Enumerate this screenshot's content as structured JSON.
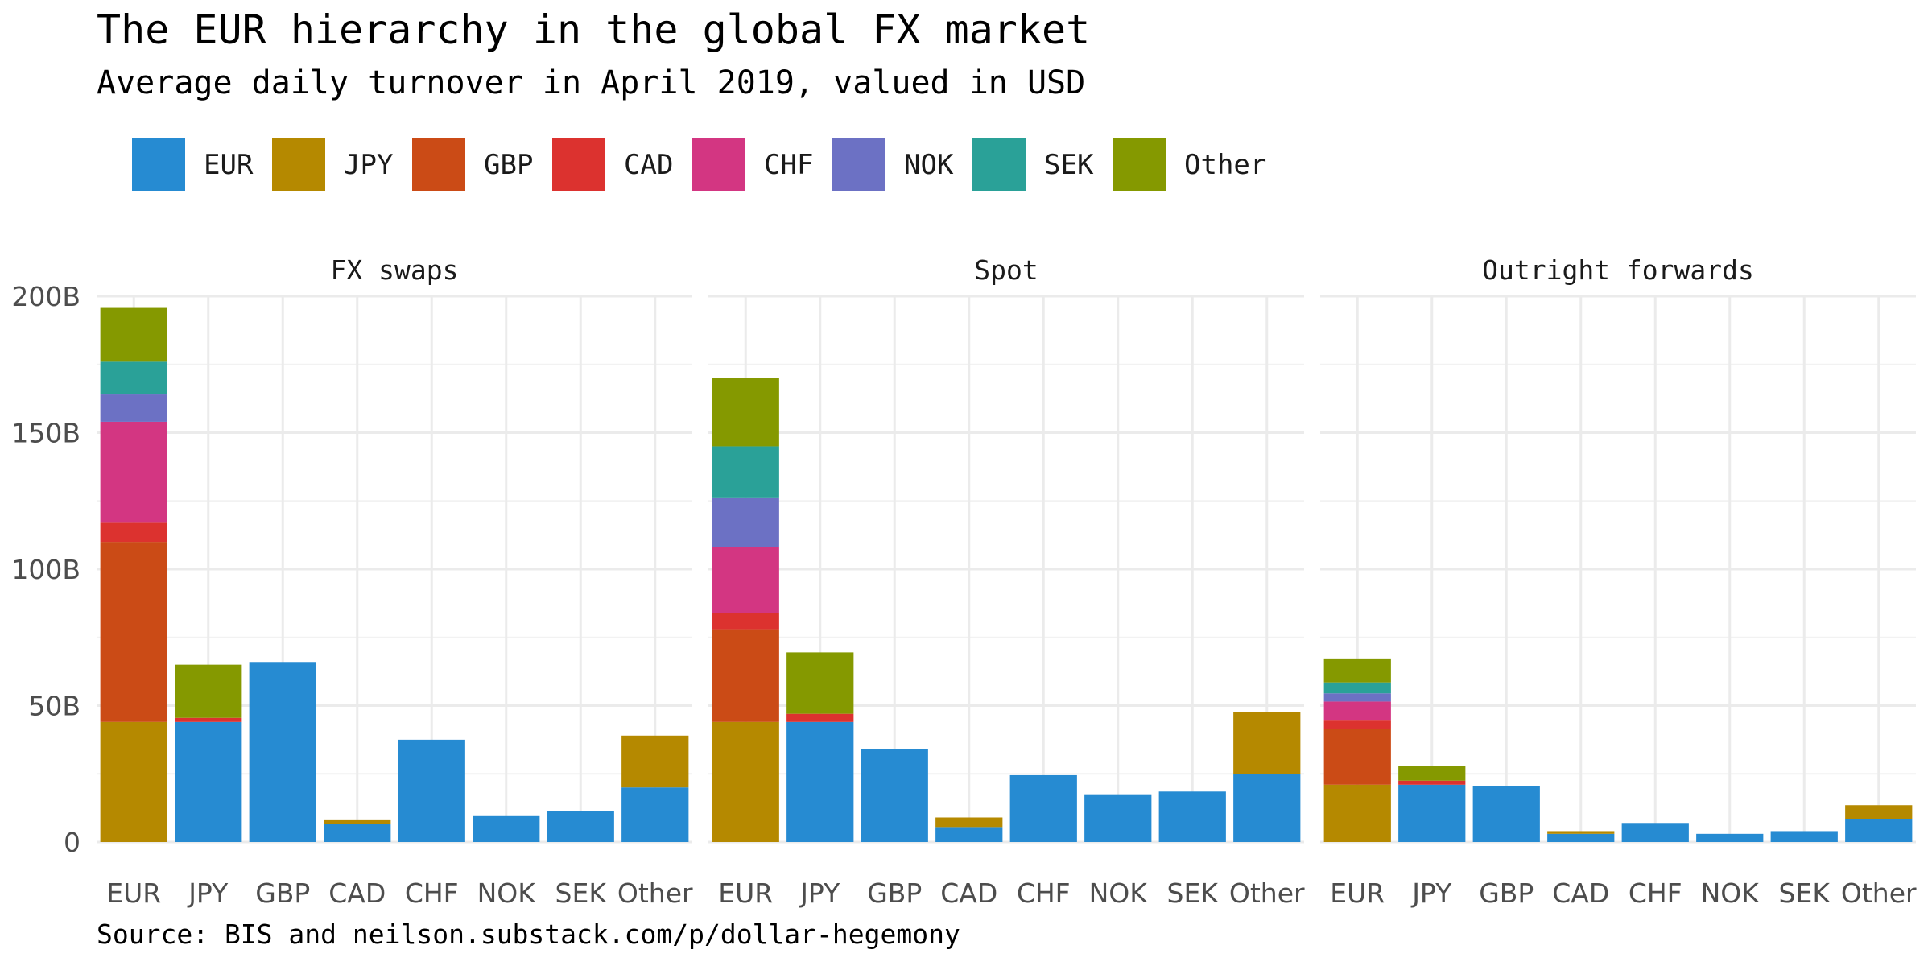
{
  "title": "The EUR hierarchy in the global FX market",
  "subtitle": "Average daily turnover in April 2019, valued in USD",
  "caption": "Source: BIS and neilson.substack.com/p/dollar-hegemony",
  "colors": {
    "EUR": "#268bd2",
    "JPY": "#b58900",
    "GBP": "#cb4b16",
    "CAD": "#dc322f",
    "CHF": "#d33682",
    "NOK": "#6c71c4",
    "SEK": "#2aa198",
    "Other": "#859900"
  },
  "chart_data": {
    "type": "bar",
    "stacked": true,
    "facets": [
      "FX swaps",
      "Spot",
      "Outright forwards"
    ],
    "categories": [
      "EUR",
      "JPY",
      "GBP",
      "CAD",
      "CHF",
      "NOK",
      "SEK",
      "Other"
    ],
    "legend": [
      "EUR",
      "JPY",
      "GBP",
      "CAD",
      "CHF",
      "NOK",
      "SEK",
      "Other"
    ],
    "legend_position": "top",
    "ylim": [
      0,
      200
    ],
    "y_ticks": [
      0,
      50,
      100,
      150,
      200
    ],
    "y_tick_labels": [
      "0",
      "50B",
      "100B",
      "150B",
      "200B"
    ],
    "unit": "billions USD",
    "grid": true,
    "panels": [
      {
        "name": "FX swaps",
        "bars": [
          {
            "category": "EUR",
            "segments": [
              {
                "currency": "JPY",
                "value": 44
              },
              {
                "currency": "GBP",
                "value": 66
              },
              {
                "currency": "CAD",
                "value": 7
              },
              {
                "currency": "CHF",
                "value": 37
              },
              {
                "currency": "NOK",
                "value": 10
              },
              {
                "currency": "SEK",
                "value": 12
              },
              {
                "currency": "Other",
                "value": 20
              }
            ]
          },
          {
            "category": "JPY",
            "segments": [
              {
                "currency": "EUR",
                "value": 44
              },
              {
                "currency": "CAD",
                "value": 1.5
              },
              {
                "currency": "Other",
                "value": 19.5
              }
            ]
          },
          {
            "category": "GBP",
            "segments": [
              {
                "currency": "EUR",
                "value": 66
              }
            ]
          },
          {
            "category": "CAD",
            "segments": [
              {
                "currency": "EUR",
                "value": 6.5
              },
              {
                "currency": "JPY",
                "value": 1.5
              }
            ]
          },
          {
            "category": "CHF",
            "segments": [
              {
                "currency": "EUR",
                "value": 37.5
              }
            ]
          },
          {
            "category": "NOK",
            "segments": [
              {
                "currency": "EUR",
                "value": 9.5
              }
            ]
          },
          {
            "category": "SEK",
            "segments": [
              {
                "currency": "EUR",
                "value": 11.5
              }
            ]
          },
          {
            "category": "Other",
            "segments": [
              {
                "currency": "EUR",
                "value": 20
              },
              {
                "currency": "JPY",
                "value": 19
              }
            ]
          }
        ]
      },
      {
        "name": "Spot",
        "bars": [
          {
            "category": "EUR",
            "segments": [
              {
                "currency": "JPY",
                "value": 44
              },
              {
                "currency": "GBP",
                "value": 34
              },
              {
                "currency": "CAD",
                "value": 6
              },
              {
                "currency": "CHF",
                "value": 24
              },
              {
                "currency": "NOK",
                "value": 18
              },
              {
                "currency": "SEK",
                "value": 19
              },
              {
                "currency": "Other",
                "value": 25
              }
            ]
          },
          {
            "category": "JPY",
            "segments": [
              {
                "currency": "EUR",
                "value": 44
              },
              {
                "currency": "CAD",
                "value": 3
              },
              {
                "currency": "Other",
                "value": 22.5
              }
            ]
          },
          {
            "category": "GBP",
            "segments": [
              {
                "currency": "EUR",
                "value": 34
              }
            ]
          },
          {
            "category": "CAD",
            "segments": [
              {
                "currency": "EUR",
                "value": 5.5
              },
              {
                "currency": "JPY",
                "value": 3.5
              }
            ]
          },
          {
            "category": "CHF",
            "segments": [
              {
                "currency": "EUR",
                "value": 24.5
              }
            ]
          },
          {
            "category": "NOK",
            "segments": [
              {
                "currency": "EUR",
                "value": 17.5
              }
            ]
          },
          {
            "category": "SEK",
            "segments": [
              {
                "currency": "EUR",
                "value": 18.5
              }
            ]
          },
          {
            "category": "Other",
            "segments": [
              {
                "currency": "EUR",
                "value": 25
              },
              {
                "currency": "JPY",
                "value": 22.5
              }
            ]
          }
        ]
      },
      {
        "name": "Outright forwards",
        "bars": [
          {
            "category": "EUR",
            "segments": [
              {
                "currency": "JPY",
                "value": 21
              },
              {
                "currency": "GBP",
                "value": 20.5
              },
              {
                "currency": "CAD",
                "value": 3
              },
              {
                "currency": "CHF",
                "value": 7
              },
              {
                "currency": "NOK",
                "value": 3
              },
              {
                "currency": "SEK",
                "value": 4
              },
              {
                "currency": "Other",
                "value": 8.5
              }
            ]
          },
          {
            "category": "JPY",
            "segments": [
              {
                "currency": "EUR",
                "value": 21
              },
              {
                "currency": "CAD",
                "value": 1.5
              },
              {
                "currency": "Other",
                "value": 5.5
              }
            ]
          },
          {
            "category": "GBP",
            "segments": [
              {
                "currency": "EUR",
                "value": 20.5
              }
            ]
          },
          {
            "category": "CAD",
            "segments": [
              {
                "currency": "EUR",
                "value": 3
              },
              {
                "currency": "JPY",
                "value": 1
              }
            ]
          },
          {
            "category": "CHF",
            "segments": [
              {
                "currency": "EUR",
                "value": 7
              }
            ]
          },
          {
            "category": "NOK",
            "segments": [
              {
                "currency": "EUR",
                "value": 3
              }
            ]
          },
          {
            "category": "SEK",
            "segments": [
              {
                "currency": "EUR",
                "value": 4
              }
            ]
          },
          {
            "category": "Other",
            "segments": [
              {
                "currency": "EUR",
                "value": 8.5
              },
              {
                "currency": "JPY",
                "value": 5
              }
            ]
          }
        ]
      }
    ]
  }
}
